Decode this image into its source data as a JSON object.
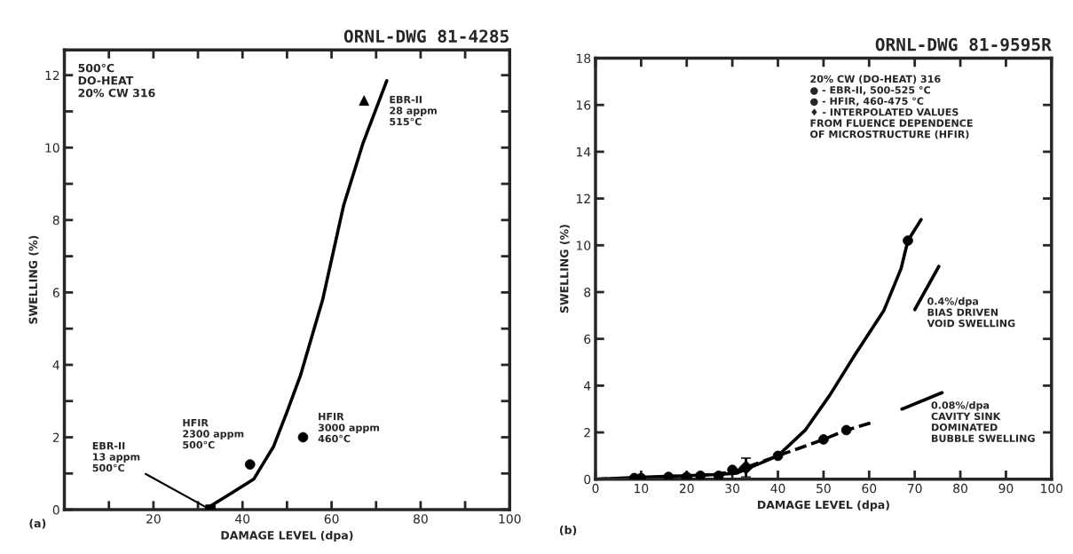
{
  "chart_data": [
    {
      "type": "line",
      "title": "ORNL-DWG 81-4285",
      "xlabel": "DAMAGE LEVEL (dpa)",
      "ylabel": "SWELLING (%)",
      "xlim": [
        0,
        100
      ],
      "ylim": [
        0,
        12.7
      ],
      "xticks": [
        {
          "value": 10,
          "label": null
        },
        20,
        {
          "value": 30,
          "label": null
        },
        40,
        {
          "value": 50,
          "label": null
        },
        60,
        {
          "value": 70,
          "label": null
        },
        80,
        {
          "value": 90,
          "label": null
        },
        100
      ],
      "yticks": [
        0,
        {
          "value": 1,
          "label": null
        },
        2,
        {
          "value": 3,
          "label": null
        },
        4,
        {
          "value": 5,
          "label": null
        },
        6,
        {
          "value": 7,
          "label": null
        },
        8,
        {
          "value": 9,
          "label": null
        },
        10,
        {
          "value": 11,
          "label": null
        },
        12
      ],
      "grid": false,
      "series": [
        {
          "color": "#000000",
          "line_style": "solid",
          "marker": "none",
          "x": [
            32.4,
            32.8,
            42.5,
            47,
            50,
            53,
            58,
            62.7,
            67,
            72.4
          ],
          "values": [
            0,
            0.1,
            0.84,
            1.75,
            2.7,
            3.7,
            5.8,
            8.4,
            10.1,
            11.85
          ]
        },
        {
          "type": "scatter",
          "color": "#000000",
          "marker": "square",
          "x": [
            32.8
          ],
          "values": [
            0
          ]
        },
        {
          "type": "scatter",
          "color": "#000000",
          "marker": "circle",
          "x": [
            41.7,
            53.6
          ],
          "values": [
            1.25,
            2.0
          ]
        },
        {
          "type": "scatter",
          "color": "#000000",
          "marker": "triangle",
          "x": [
            67.3
          ],
          "values": [
            11.3
          ]
        }
      ],
      "annotations": [
        "500°C\nDO-HEAT\n20% CW 316",
        {
          "text": "EBR-II\n13 appm\n500°C",
          "x": 32.8,
          "y": 0
        },
        {
          "text": "HFIR\n2300 appm\n500°C",
          "x": 41.7,
          "y": 1.25
        },
        {
          "text": "HFIR\n3000 appm\n460°C",
          "x": 53.6,
          "y": 2.0
        },
        {
          "text": "EBR-II\n28 appm\n515°C",
          "x": 68.5,
          "y": 11.3
        },
        "(a)"
      ]
    },
    {
      "type": "line",
      "title": "ORNL-DWG 81-9595R",
      "xlabel": "DAMAGE LEVEL (dpa)",
      "ylabel": "SWELLING (%)",
      "xlim": [
        0,
        100
      ],
      "ylim": [
        0,
        18
      ],
      "xticks": [
        0,
        10,
        20,
        30,
        40,
        50,
        60,
        70,
        80,
        90,
        100
      ],
      "yticks": [
        0,
        2,
        4,
        6,
        8,
        10,
        12,
        14,
        16,
        18
      ],
      "grid": false,
      "series": [
        {
          "color": "#000000",
          "line_style": "solid",
          "marker": "none",
          "x": [
            0,
            8.6,
            19.8,
            27,
            31,
            40,
            46,
            51.4,
            57,
            63.2,
            67,
            68.5,
            71.4
          ],
          "values": [
            0,
            0.07,
            0.15,
            0.2,
            0.26,
            1.0,
            2.1,
            3.6,
            5.35,
            7.2,
            9.0,
            10.2,
            11.1
          ]
        },
        {
          "color": "#000000",
          "line_style": "dashed",
          "marker": "none",
          "x": [
            0,
            10,
            20,
            30,
            40,
            50,
            55,
            60.3
          ],
          "values": [
            0,
            0.05,
            0.1,
            0.3,
            1.0,
            1.7,
            2.1,
            2.4
          ]
        },
        {
          "type": "scatter",
          "color": "#000000",
          "marker": "circle",
          "x": [
            10,
            20,
            30,
            40,
            50,
            68.5
          ],
          "values": [
            0.05,
            0.1,
            0.4,
            1.0,
            1.7,
            10.2
          ]
        },
        {
          "type": "scatter",
          "color": "#000000",
          "marker": "circle",
          "x": [
            8.5,
            16,
            23,
            27,
            55
          ],
          "values": [
            0.05,
            0.1,
            0.15,
            0.15,
            2.1
          ]
        },
        {
          "type": "scatter",
          "color": "#000000",
          "marker": "diamond",
          "x": [
            33
          ],
          "values": [
            0.5
          ],
          "errors": [
            0.4
          ]
        },
        {
          "color": "#000000",
          "line_style": "solid",
          "marker": "none",
          "x": [
            70,
            75.3
          ],
          "values": [
            7.25,
            9.1
          ]
        },
        {
          "color": "#000000",
          "line_style": "solid",
          "marker": "none",
          "x": [
            67.2,
            76
          ],
          "values": [
            3.0,
            3.7
          ]
        }
      ],
      "annotations": [
        {
          "text": "0.4%/dpa\nBIAS DRIVEN\nVOID SWELLING",
          "x": 70,
          "y": 7.25
        },
        {
          "text": "0.08%/dpa\nCAVITY SINK\nDOMINATED\nBUBBLE SWELLING",
          "x": 76,
          "y": 3.7
        },
        "20% CW (DO-HEAT) 316\n● - EBR-II, 500-525 °C\n● - HFIR, 460-475 °C\n♦ - INTERPOLATED VALUES\nFROM FLUENCE DEPENDENCE\nOF MICROSTRUCTURE (HFIR)",
        "(b)"
      ]
    }
  ]
}
